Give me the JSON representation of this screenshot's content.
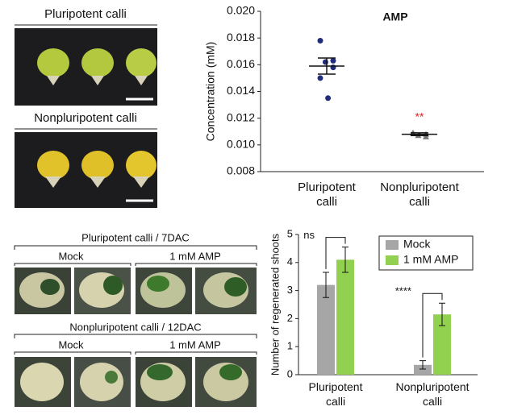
{
  "photos": {
    "top": [
      "Pluripotent calli",
      "Nonpluripotent calli"
    ],
    "bottom": [
      {
        "title": "Pluripotent calli / 7DAC",
        "groups": [
          "Mock",
          "1 mM AMP"
        ]
      },
      {
        "title": "Nonpluripotent calli / 12DAC",
        "groups": [
          "Mock",
          "1 mM AMP"
        ]
      }
    ]
  },
  "chart_data": [
    {
      "type": "dot",
      "title": "AMP",
      "ylabel": "Concentration (mM)",
      "categories": [
        "Pluripotent calli",
        "Nonpluripotent calli"
      ],
      "colors": [
        "#1f2d7a",
        "#777777"
      ],
      "points": [
        [
          0.0178,
          0.0163,
          0.0162,
          0.0158,
          0.015,
          0.0135
        ],
        [
          0.0109,
          0.0108,
          0.0107,
          0.0106
        ]
      ],
      "means": [
        0.0159,
        0.0108
      ],
      "sem": [
        0.0006,
        0.0001
      ],
      "annotation": "**",
      "ylim": [
        0.008,
        0.02
      ],
      "yticks": [
        0.008,
        {
          "value": 0.01,
          "label": "0.010"
        },
        0.012,
        0.014,
        0.016,
        0.018,
        {
          "value": 0.02,
          "label": "0.020"
        }
      ]
    },
    {
      "type": "bar",
      "ylabel": "Number of regenerated shoots",
      "categories": [
        "Pluripotent calli",
        "Nonpluripotent calli"
      ],
      "series": [
        {
          "name": "Mock",
          "color": "#a6a6a6",
          "values": [
            3.2,
            0.35
          ],
          "errors": [
            0.45,
            0.15
          ]
        },
        {
          "name": "1 mM AMP",
          "color": "#92d050",
          "values": [
            4.1,
            2.15
          ],
          "errors": [
            0.45,
            0.4
          ]
        }
      ],
      "annotations": [
        "ns",
        "****"
      ],
      "ylim": [
        0,
        5
      ],
      "yticks": [
        0,
        1,
        2,
        3,
        4,
        5
      ],
      "legend": "upper right"
    }
  ]
}
